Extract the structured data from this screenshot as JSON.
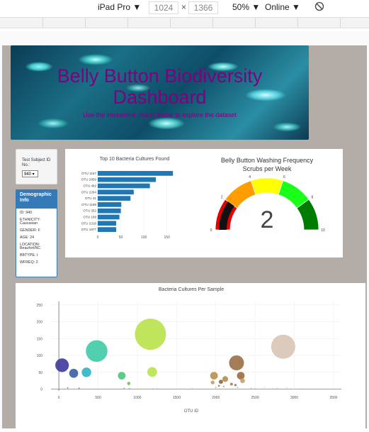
{
  "toolbar": {
    "device": "iPad Pro ▼",
    "width": "1024",
    "times": "×",
    "height": "1366",
    "zoom": "50% ▼",
    "network": "Online ▼"
  },
  "banner": {
    "title_line1": "Belly Button Biodiversity",
    "title_line2": "Dashboard",
    "subtitle": "Use the interactive charts below to explore the dataset"
  },
  "subject_select": {
    "label": "Test Subject ID No.:",
    "value": "940 ▾"
  },
  "demographics": {
    "title": "Demographic Info",
    "id": "ID: 940",
    "ethnicity": "ETHNICITY: Caucasian",
    "gender": "GENDER: F",
    "age": "AGE: 24",
    "location": "LOCATION: Beaufort/NC",
    "bbtype": "BBTYPE: I",
    "wfreq": "WFREQ: 2"
  },
  "chart_data": [
    {
      "type": "bar",
      "orientation": "horizontal",
      "title": "Top 10 Bacteria Cultures Found",
      "categories": [
        "OTU 1167",
        "OTU 2859",
        "OTU 482",
        "OTU 2264",
        "OTU 41",
        "OTU 1189",
        "OTU 352",
        "OTU 189",
        "OTU 2318",
        "OTU 1977"
      ],
      "values": [
        163,
        126,
        113,
        78,
        71,
        51,
        50,
        47,
        40,
        40
      ],
      "xticks": [
        "0",
        "50",
        "100",
        "150"
      ],
      "xlim": [
        0,
        175
      ]
    },
    {
      "type": "gauge",
      "title_line1": "Belly Button Washing Frequency",
      "title_line2": "Scrubs per Week",
      "value": 2,
      "value_label": "2",
      "range": [
        0,
        10
      ],
      "tick_labels": [
        "0",
        "2",
        "4",
        "6",
        "8",
        "10"
      ],
      "band_colors": [
        "#e60000",
        "#ff9d00",
        "#ffff00",
        "#19ff19",
        "#007d00"
      ]
    },
    {
      "type": "scatter",
      "subtype": "bubble",
      "title": "Bacteria Cultures Per Sample",
      "xlabel": "OTU ID",
      "xticks": [
        "0",
        "500",
        "1000",
        "1500",
        "2000",
        "2500",
        "3000",
        "3500"
      ],
      "yticks": [
        "0",
        "50",
        "100",
        "150",
        "200",
        "250"
      ],
      "xlim": [
        -100,
        3600
      ],
      "ylim": [
        -5,
        260
      ],
      "x": [
        41,
        113,
        189,
        258,
        352,
        482,
        801,
        831,
        891,
        1167,
        1189,
        1977,
        2065,
        2264,
        2318,
        2859,
        2905,
        1960,
        2040,
        2120,
        2200,
        2280,
        2340,
        2450,
        2500,
        2620,
        2720,
        2780,
        1550,
        1700,
        1100,
        1250,
        900,
        1000,
        1200,
        2000,
        2100,
        2250,
        3100,
        3000
      ],
      "y": [
        71,
        4,
        47,
        3,
        50,
        113,
        40,
        3,
        17,
        163,
        51,
        40,
        22,
        78,
        40,
        126,
        4,
        20,
        10,
        30,
        15,
        5,
        25,
        3,
        2,
        5,
        2,
        3,
        1,
        2,
        1,
        3,
        2,
        1,
        2,
        5,
        8,
        12,
        2,
        1
      ],
      "colors": [
        "#3e3a9c",
        "#2c5aa8",
        "#3a5fa5",
        "#2c6aa9",
        "#2db5c4",
        "#3ecba6",
        "#48c878",
        "#52c460",
        "#62c850",
        "#b8e24a",
        "#b7e44d",
        "#b8914d",
        "#8a6a3a",
        "#9a6f45",
        "#9a6a40",
        "#d8c5b5",
        "#e0d2c4",
        "#bf9f70",
        "#a77b47",
        "#b88a50",
        "#a9824f",
        "#b09060",
        "#c0a070",
        "#d2bca8",
        "#dccab8",
        "#d9c5b2",
        "#e2d5c8",
        "#e0d0c0",
        "#c6c66a",
        "#d4d48a",
        "#c9e060",
        "#d8e89a",
        "#6cd060",
        "#a8dd58",
        "#c0e266",
        "#a88258",
        "#b38c5f",
        "#9c7647",
        "#e6ddd5",
        "#e4d8cc"
      ]
    }
  ]
}
